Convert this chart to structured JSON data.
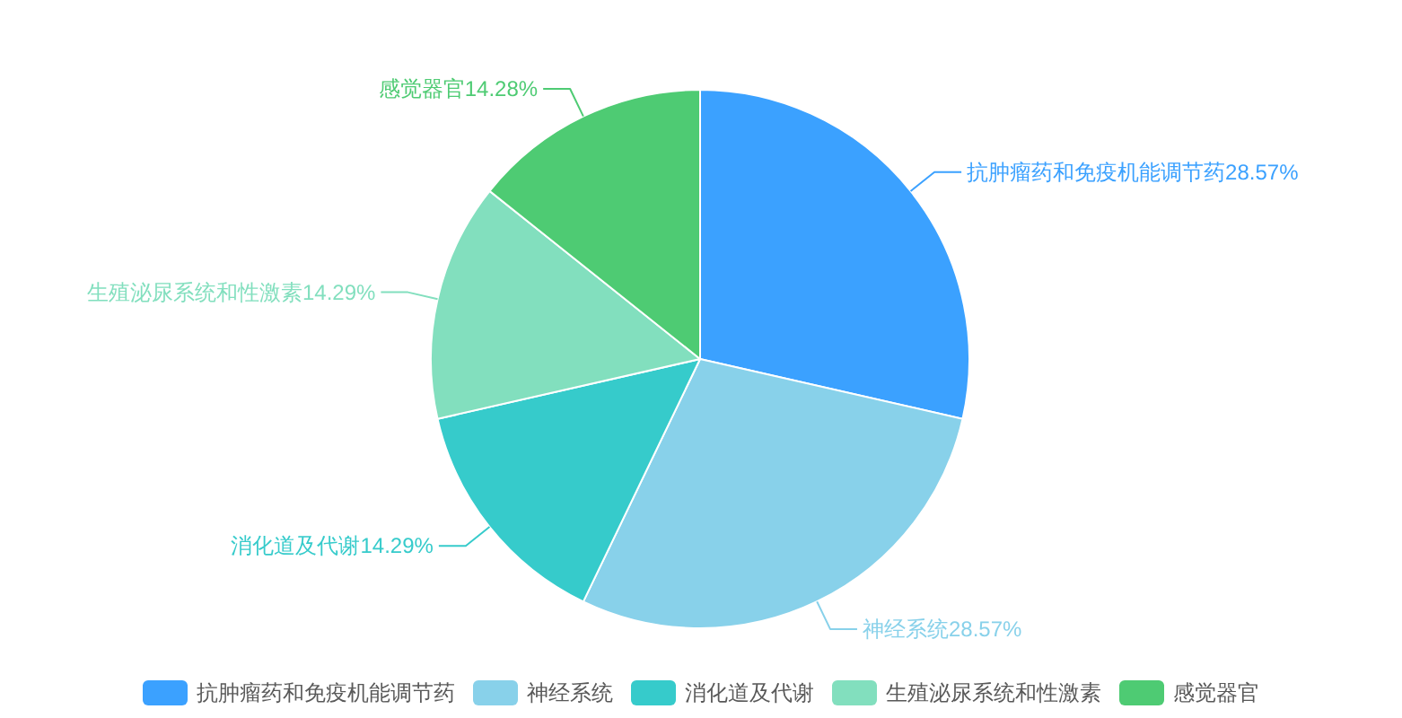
{
  "chart_data": {
    "type": "pie",
    "categories": [
      "抗肿瘤药和免疫机能调节药",
      "神经系统",
      "消化道及代谢",
      "生殖泌尿系统和性激素",
      "感觉器官"
    ],
    "values": [
      28.57,
      28.57,
      14.29,
      14.29,
      14.28
    ],
    "colors": [
      "#3ba1ff",
      "#88d1ea",
      "#36cbcb",
      "#82dfbe",
      "#4ecb73"
    ],
    "value_labels": [
      "28.57%",
      "28.57%",
      "14.29%",
      "14.29%",
      "14.28%"
    ],
    "legend": "bottom"
  }
}
